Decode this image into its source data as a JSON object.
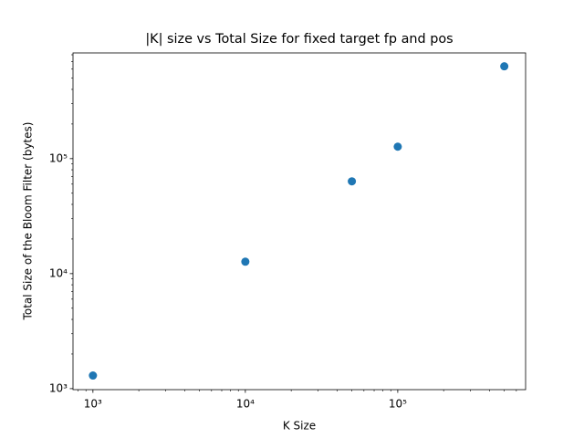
{
  "chart_data": {
    "type": "scatter",
    "title": "|K| size vs Total Size for fixed target fp and pos",
    "x_label": "K Size",
    "y_label": "Total Size of the Bloom Filter (bytes)",
    "xscale": "log",
    "yscale": "log",
    "x": [
      1000,
      10000,
      50000,
      100000,
      500000
    ],
    "values": [
      1300,
      12700,
      63500,
      127000,
      635000
    ],
    "color": "#1f77b4",
    "xlim": [
      740,
      690000
    ],
    "ylim": [
      980,
      830000
    ],
    "xticks": [
      {
        "value": 1000,
        "label": "10³"
      },
      {
        "value": 10000,
        "label": "10⁴"
      },
      {
        "value": 100000,
        "label": "10⁵"
      }
    ],
    "yticks": [
      {
        "value": 1000,
        "label": "10³"
      },
      {
        "value": 10000,
        "label": "10⁴"
      },
      {
        "value": 100000,
        "label": "10⁵"
      }
    ],
    "xminorticks": [
      800,
      900,
      2000,
      3000,
      4000,
      5000,
      6000,
      7000,
      8000,
      9000,
      20000,
      30000,
      40000,
      50000,
      60000,
      70000,
      80000,
      90000,
      200000,
      300000,
      400000,
      500000,
      600000
    ],
    "yminorticks": [
      2000,
      3000,
      4000,
      5000,
      6000,
      7000,
      8000,
      9000,
      20000,
      30000,
      40000,
      50000,
      60000,
      70000,
      80000,
      90000,
      200000,
      300000,
      400000,
      500000,
      600000,
      700000,
      800000
    ],
    "grid": false
  }
}
